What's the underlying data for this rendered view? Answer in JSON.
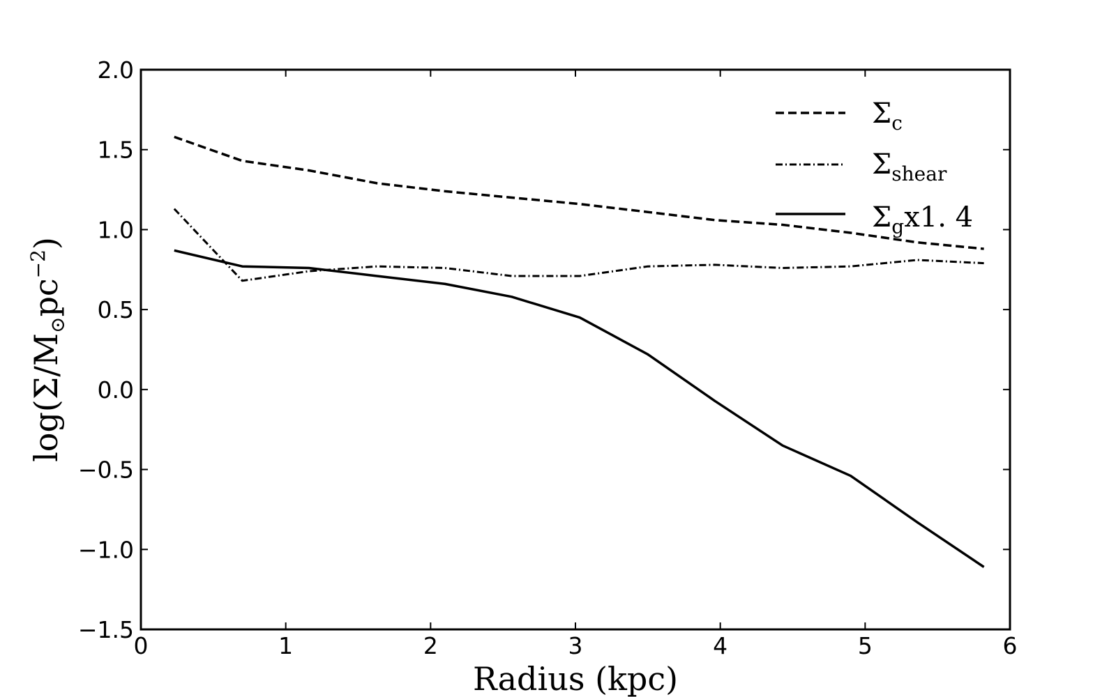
{
  "chart_data": {
    "type": "line",
    "xlabel": "Radius (kpc)",
    "ylabel": {
      "prefix": "log(Σ/M",
      "sub": "⊙",
      "mid": "pc",
      "sup": "−2",
      "suffix": ")"
    },
    "xlim": [
      0,
      6
    ],
    "ylim": [
      -1.5,
      2.0
    ],
    "xticks": [
      0,
      1,
      2,
      3,
      4,
      5,
      6
    ],
    "xtick_labels": [
      "0",
      "1",
      "2",
      "3",
      "4",
      "5",
      "6"
    ],
    "yticks": [
      2.0,
      1.5,
      1.0,
      0.5,
      0.0,
      -0.5,
      -1.0,
      -1.5
    ],
    "ytick_labels": [
      "2.0",
      "1.5",
      "1.0",
      "0.5",
      "0.0",
      "−0.5",
      "−1.0",
      "−1.5"
    ],
    "grid": false,
    "legend_position": "top-right",
    "series": [
      {
        "id": "sigma-c",
        "legend": {
          "main": "Σ",
          "sub": "c",
          "extra": ""
        },
        "style": "dashed",
        "color": "#000000",
        "x": [
          0.23,
          0.7,
          1.16,
          1.63,
          2.1,
          2.56,
          3.03,
          3.5,
          3.96,
          4.43,
          4.9,
          5.36,
          5.82
        ],
        "y": [
          1.58,
          1.43,
          1.37,
          1.29,
          1.24,
          1.2,
          1.16,
          1.11,
          1.06,
          1.03,
          0.98,
          0.92,
          0.88
        ]
      },
      {
        "id": "sigma-shear",
        "legend": {
          "main": "Σ",
          "sub": "shear",
          "extra": ""
        },
        "style": "dashdot",
        "color": "#000000",
        "x": [
          0.23,
          0.7,
          1.16,
          1.63,
          2.1,
          2.56,
          3.03,
          3.5,
          3.96,
          4.43,
          4.9,
          5.36,
          5.82
        ],
        "y": [
          1.13,
          0.68,
          0.74,
          0.77,
          0.76,
          0.71,
          0.71,
          0.77,
          0.78,
          0.76,
          0.77,
          0.81,
          0.79
        ]
      },
      {
        "id": "sigma-g",
        "legend": {
          "main": "Σ",
          "sub": "g",
          "extra": "x1. 4"
        },
        "style": "solid",
        "color": "#000000",
        "x": [
          0.23,
          0.7,
          1.16,
          1.63,
          2.1,
          2.56,
          3.03,
          3.5,
          3.96,
          4.43,
          4.9,
          5.36,
          5.82
        ],
        "y": [
          0.87,
          0.77,
          0.76,
          0.71,
          0.66,
          0.58,
          0.45,
          0.22,
          -0.07,
          -0.35,
          -0.54,
          -0.83,
          -1.11
        ]
      }
    ]
  }
}
